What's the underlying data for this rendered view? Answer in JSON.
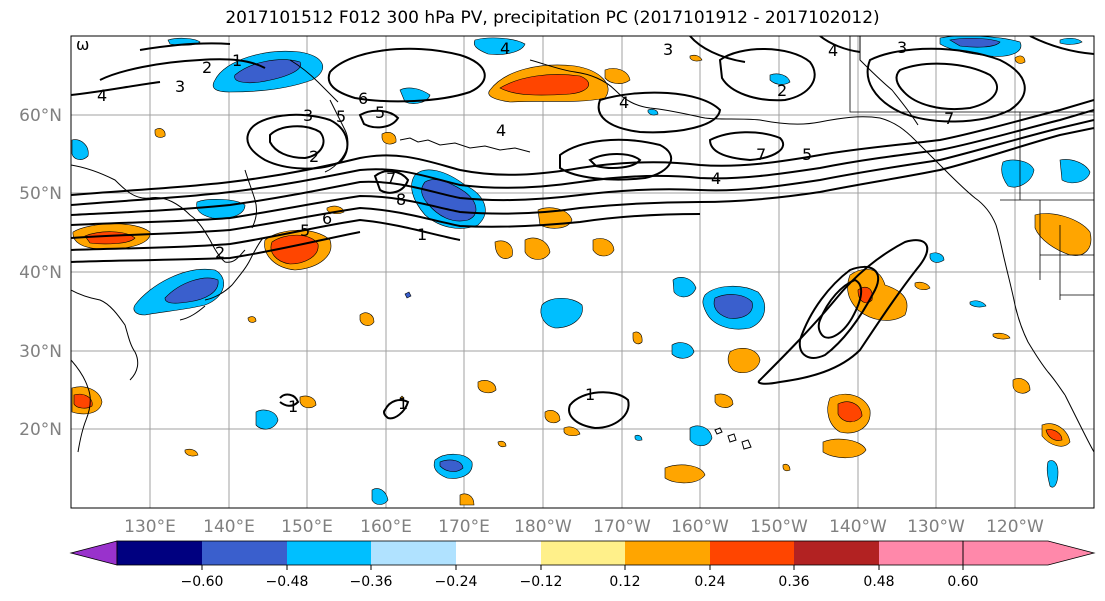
{
  "title": "2017101512 F012 300 hPa PV, precipitation PC (2017101912 - 2017102012)",
  "longitude_ticks": [
    "130°E",
    "140°E",
    "150°E",
    "160°E",
    "170°E",
    "180°W",
    "170°W",
    "160°W",
    "150°W",
    "140°W",
    "130°W",
    "120°W"
  ],
  "latitude_ticks": [
    "60°N",
    "50°N",
    "40°N",
    "30°N",
    "20°N"
  ],
  "colorbar": {
    "ticks": [
      "−0.60",
      "−0.48",
      "−0.36",
      "−0.24",
      "−0.12",
      "0.12",
      "0.24",
      "0.36",
      "0.48",
      "0.60"
    ],
    "colors": [
      "#9932cc",
      "#000080",
      "#3a5fcd",
      "#00bfff",
      "#b0e2ff",
      "#ffffff",
      "#fff08a",
      "#ffa500",
      "#ff4500",
      "#b22222",
      "#ff88aa"
    ]
  },
  "contour_labels": [
    "ω",
    "1",
    "2",
    "3",
    "4",
    "6",
    "5",
    "3",
    "5",
    "2",
    "7",
    "8",
    "6",
    "5",
    "2",
    "1",
    "4",
    "7",
    "5",
    "4",
    "3",
    "4",
    "2",
    "4",
    "3",
    "7",
    "1",
    "1",
    "1",
    "4"
  ]
}
